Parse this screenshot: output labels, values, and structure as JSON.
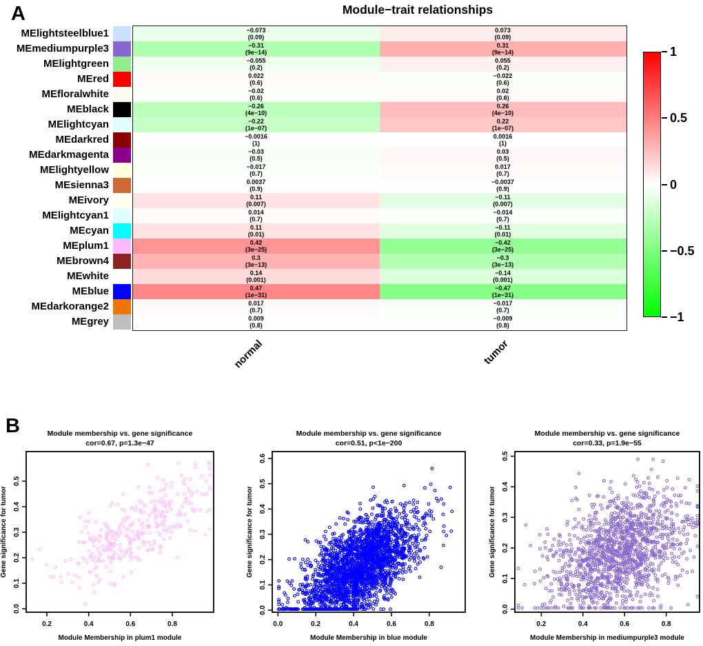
{
  "panelA": {
    "label": "A"
  },
  "panelB": {
    "label": "B"
  },
  "chart_data": [
    {
      "type": "heatmap",
      "title": "Module−trait relationships",
      "columns": [
        "normal",
        "tumor"
      ],
      "colorbar": {
        "range": [
          -1,
          1
        ],
        "ticks": [
          "1",
          "0.5",
          "0",
          "−0.5",
          "−1"
        ],
        "max_color": "#FF0000",
        "mid_color": "#FFFFFF",
        "min_color": "#00FF00"
      },
      "cell_format": "correlation with (p-value)",
      "rows": [
        {
          "module": "MElightsteelblue1",
          "swatch": "#CAE1FF",
          "values": [
            -0.073,
            0.073
          ],
          "pvalues": [
            "0.09",
            "0.09"
          ]
        },
        {
          "module": "MEmediumpurple3",
          "swatch": "#8968CD",
          "values": [
            -0.31,
            0.31
          ],
          "pvalues": [
            "9e−14",
            "9e−14"
          ]
        },
        {
          "module": "MElightgreen",
          "swatch": "#90EE90",
          "values": [
            -0.055,
            0.055
          ],
          "pvalues": [
            "0.2",
            "0.2"
          ]
        },
        {
          "module": "MEred",
          "swatch": "#FF0000",
          "values": [
            0.022,
            -0.022
          ],
          "pvalues": [
            "0.6",
            "0.6"
          ]
        },
        {
          "module": "MEfloralwhite",
          "swatch": "#FFFAF0",
          "values": [
            -0.02,
            0.02
          ],
          "pvalues": [
            "0.6",
            "0.6"
          ]
        },
        {
          "module": "MEblack",
          "swatch": "#000000",
          "values": [
            -0.26,
            0.26
          ],
          "pvalues": [
            "4e−10",
            "4e−10"
          ]
        },
        {
          "module": "MElightcyan",
          "swatch": "#E0FFFF",
          "values": [
            -0.22,
            0.22
          ],
          "pvalues": [
            "1e−07",
            "1e−07"
          ]
        },
        {
          "module": "MEdarkred",
          "swatch": "#8B0000",
          "values": [
            -0.0016,
            0.0016
          ],
          "pvalues": [
            "1",
            "1"
          ]
        },
        {
          "module": "MEdarkmagenta",
          "swatch": "#8B008B",
          "values": [
            -0.03,
            0.03
          ],
          "pvalues": [
            "0.5",
            "0.5"
          ]
        },
        {
          "module": "MElightyellow",
          "swatch": "#FFFFE0",
          "values": [
            -0.017,
            0.017
          ],
          "pvalues": [
            "0.7",
            "0.7"
          ]
        },
        {
          "module": "MEsienna3",
          "swatch": "#CD6839",
          "values": [
            0.0037,
            -0.0037
          ],
          "pvalues": [
            "0.9",
            "0.9"
          ]
        },
        {
          "module": "MEivory",
          "swatch": "#FFFFF0",
          "values": [
            0.11,
            -0.11
          ],
          "pvalues": [
            "0.007",
            "0.007"
          ]
        },
        {
          "module": "MElightcyan1",
          "swatch": "#E0FFFF",
          "values": [
            0.014,
            -0.014
          ],
          "pvalues": [
            "0.7",
            "0.7"
          ]
        },
        {
          "module": "MEcyan",
          "swatch": "#00FFFF",
          "values": [
            0.11,
            -0.11
          ],
          "pvalues": [
            "0.01",
            "0.01"
          ]
        },
        {
          "module": "MEplum1",
          "swatch": "#FFBBFF",
          "values": [
            0.42,
            -0.42
          ],
          "pvalues": [
            "3e−25",
            "3e−25"
          ]
        },
        {
          "module": "MEbrown4",
          "swatch": "#8B2323",
          "values": [
            0.3,
            -0.3
          ],
          "pvalues": [
            "3e−13",
            "3e−13"
          ]
        },
        {
          "module": "MEwhite",
          "swatch": "#FFFFFF",
          "values": [
            0.14,
            -0.14
          ],
          "pvalues": [
            "0.001",
            "0.001"
          ]
        },
        {
          "module": "MEblue",
          "swatch": "#0000FF",
          "values": [
            0.47,
            -0.47
          ],
          "pvalues": [
            "1e−31",
            "1e−31"
          ]
        },
        {
          "module": "MEdarkorange2",
          "swatch": "#EE7600",
          "values": [
            0.017,
            -0.017
          ],
          "pvalues": [
            "0.7",
            "0.7"
          ]
        },
        {
          "module": "MEgrey",
          "swatch": "#BEBEBE",
          "values": [
            0.009,
            -0.009
          ],
          "pvalues": [
            "0.8",
            "0.8"
          ]
        }
      ]
    },
    {
      "type": "scatter",
      "title": "Module membership vs. gene significance",
      "subtitle": "cor=0.67, p=1.3e−47",
      "xlabel": "Module Membership in plum1 module",
      "ylabel": "Gene significance for tumor",
      "point_color": "#FFBBFF",
      "xticks": [
        0.2,
        0.4,
        0.6,
        0.8
      ],
      "yticks": [
        0.0,
        0.1,
        0.2,
        0.3,
        0.4,
        0.5
      ],
      "xlim": [
        0.101,
        0.998
      ],
      "ylim": [
        -0.0135,
        0.616
      ],
      "n_points": 330,
      "gen": {
        "seed": 11,
        "x_mean": 0.62,
        "x_sd": 0.17,
        "x_min": 0.13,
        "x_max": 0.98,
        "slope": 0.44,
        "intercept": 0.03,
        "noise_sd": 0.075,
        "y_min": 0.02,
        "y_max": 0.57
      }
    },
    {
      "type": "scatter",
      "title": "Module membership vs. gene significance",
      "subtitle": "cor=0.51, p<1e−200",
      "xlabel": "Module Membership in blue module",
      "ylabel": "Gene significance for tumor",
      "point_color": "#0000FF",
      "xticks": [
        0.0,
        0.2,
        0.4,
        0.6,
        0.8
      ],
      "yticks": [
        0.0,
        0.1,
        0.2,
        0.3,
        0.4,
        0.5,
        0.6
      ],
      "xlim": [
        -0.03,
        0.99
      ],
      "ylim": [
        -0.008,
        0.627
      ],
      "n_points": 2600,
      "gen": {
        "seed": 22,
        "x_mean": 0.43,
        "x_sd": 0.155,
        "x_min": 0.005,
        "x_max": 0.92,
        "slope": 0.45,
        "intercept": -0.02,
        "noise_sd": 0.085,
        "y_min": 0.004,
        "y_max": 0.6
      }
    },
    {
      "type": "scatter",
      "title": "Module membership vs. gene significance",
      "subtitle": "cor=0.33, p=1.9e−55",
      "xlabel": "Module Membership in mediumpurple3 module",
      "ylabel": "Gene significance for tumor",
      "point_color": "#8968CD",
      "xticks": [
        0.2,
        0.4,
        0.6,
        0.8
      ],
      "yticks": [
        0.0,
        0.1,
        0.2,
        0.3,
        0.4,
        0.5
      ],
      "xlim": [
        0.073,
        0.96
      ],
      "ylim": [
        -0.01,
        0.515
      ],
      "n_points": 1400,
      "gen": {
        "seed": 33,
        "x_mean": 0.57,
        "x_sd": 0.165,
        "x_min": 0.09,
        "x_max": 0.95,
        "slope": 0.24,
        "intercept": 0.05,
        "noise_sd": 0.095,
        "y_min": 0.004,
        "y_max": 0.49
      }
    }
  ]
}
